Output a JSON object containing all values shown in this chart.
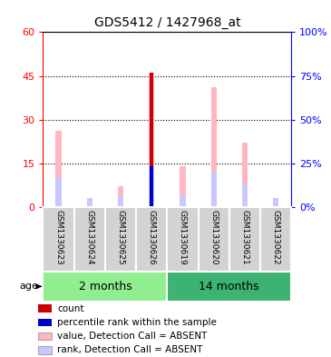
{
  "title": "GDS5412 / 1427968_at",
  "samples": [
    "GSM1330623",
    "GSM1330624",
    "GSM1330625",
    "GSM1330626",
    "GSM1330619",
    "GSM1330620",
    "GSM1330621",
    "GSM1330622"
  ],
  "ylim_left": [
    0,
    60
  ],
  "ylim_right": [
    0,
    100
  ],
  "yticks_left": [
    0,
    15,
    30,
    45,
    60
  ],
  "yticks_right": [
    0,
    25,
    50,
    75,
    100
  ],
  "ytick_labels_left": [
    "0",
    "15",
    "30",
    "45",
    "60"
  ],
  "ytick_labels_right": [
    "0%",
    "25%",
    "50%",
    "75%",
    "100%"
  ],
  "value_absent": [
    26,
    3,
    7,
    46,
    14,
    41,
    22,
    3
  ],
  "rank_absent": [
    10,
    3,
    4,
    14,
    4,
    12,
    8,
    3
  ],
  "count_val": [
    0,
    0,
    0,
    46,
    0,
    0,
    0,
    0
  ],
  "percentile_val": [
    0,
    0,
    0,
    14,
    0,
    0,
    0,
    0
  ],
  "color_count": "#cc0000",
  "color_percentile": "#0000cc",
  "color_value_absent": "#FFB6C1",
  "color_rank_absent": "#c8c8ff",
  "age_label": "age",
  "group1_label": "2 months",
  "group2_label": "14 months",
  "group1_color": "#90EE90",
  "group2_color": "#3CB371",
  "legend_items": [
    {
      "color": "#cc0000",
      "label": "count"
    },
    {
      "color": "#0000cc",
      "label": "percentile rank within the sample"
    },
    {
      "color": "#FFB6C1",
      "label": "value, Detection Call = ABSENT"
    },
    {
      "color": "#c8c8ff",
      "label": "rank, Detection Call = ABSENT"
    }
  ]
}
